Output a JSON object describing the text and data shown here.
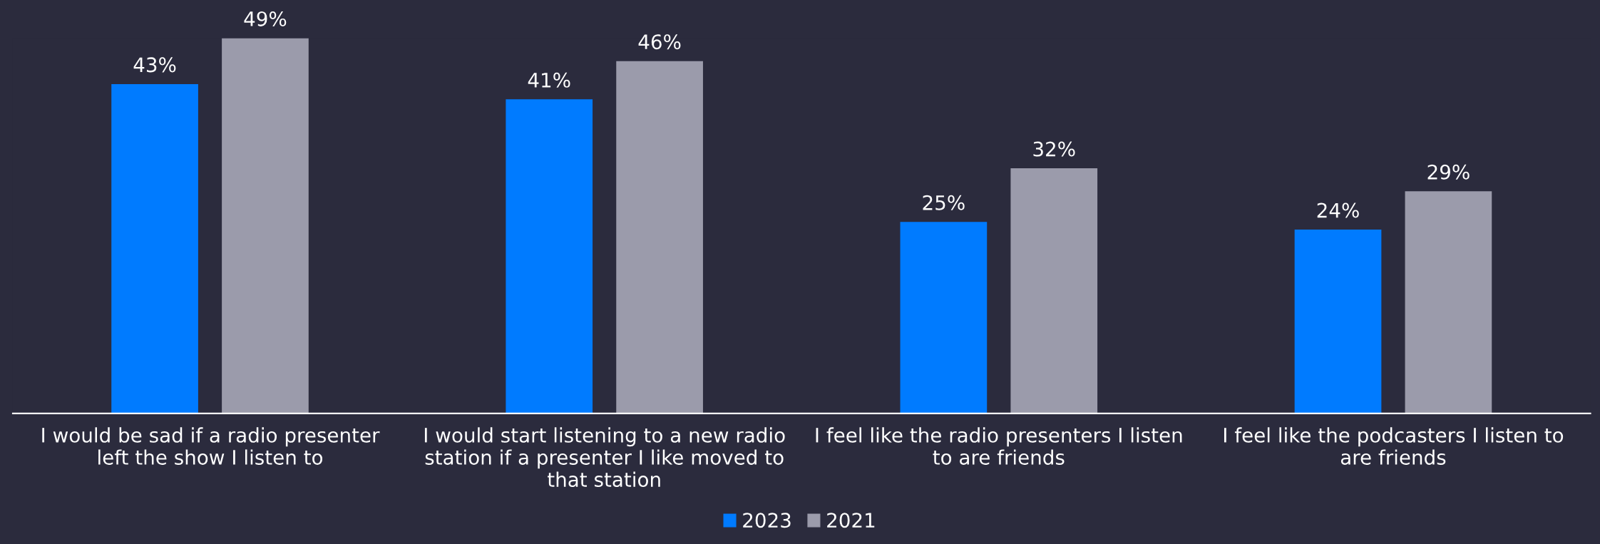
{
  "chart_data": {
    "type": "bar",
    "categories": [
      "I would be sad if a radio presenter left the show I listen to",
      "I would start listening to a new radio station if a presenter I like moved to that station",
      "I feel like the radio presenters I listen to are friends",
      "I feel like the podcasters I listen to are friends"
    ],
    "series": [
      {
        "name": "2023",
        "color": "#007bff",
        "values": [
          43,
          41,
          25,
          24
        ],
        "value_labels": [
          "43%",
          "41%",
          "25%",
          "24%"
        ]
      },
      {
        "name": "2021",
        "color": "#9b9bab",
        "values": [
          49,
          46,
          32,
          29
        ],
        "value_labels": [
          "49%",
          "46%",
          "32%",
          "29%"
        ]
      }
    ],
    "ylim": [
      0,
      49
    ],
    "tick_labels": "x",
    "grid": false,
    "legend": "bottom"
  }
}
